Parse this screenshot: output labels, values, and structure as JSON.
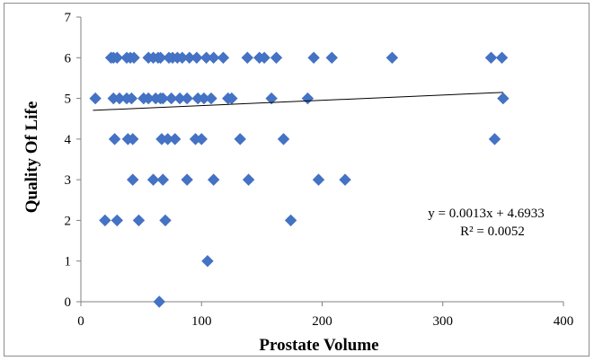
{
  "chart_data": {
    "type": "scatter",
    "title": "",
    "xlabel": "Prostate Volume",
    "ylabel": "Quality Of Life",
    "xlim": [
      0,
      400
    ],
    "ylim": [
      0,
      7
    ],
    "xticks": [
      "0",
      "100",
      "200",
      "300",
      "400"
    ],
    "yticks": [
      "0",
      "1",
      "2",
      "3",
      "4",
      "5",
      "6",
      "7"
    ],
    "grid": false,
    "legend": "none",
    "marker_color": "#4472C4",
    "trendline_color": "#000000",
    "annotation": {
      "equation": "y = 0.0013x + 4.6933",
      "r_squared": "R² = 0.0052"
    },
    "trendline": {
      "slope": 0.0013,
      "intercept": 4.6933,
      "x_range": [
        10,
        350
      ]
    },
    "points": [
      {
        "x": 25,
        "y": 6
      },
      {
        "x": 27,
        "y": 6
      },
      {
        "x": 30,
        "y": 6
      },
      {
        "x": 38,
        "y": 6
      },
      {
        "x": 41,
        "y": 6
      },
      {
        "x": 44,
        "y": 6
      },
      {
        "x": 56,
        "y": 6
      },
      {
        "x": 60,
        "y": 6
      },
      {
        "x": 64,
        "y": 6
      },
      {
        "x": 66,
        "y": 6
      },
      {
        "x": 73,
        "y": 6
      },
      {
        "x": 76,
        "y": 6
      },
      {
        "x": 80,
        "y": 6
      },
      {
        "x": 84,
        "y": 6
      },
      {
        "x": 90,
        "y": 6
      },
      {
        "x": 96,
        "y": 6
      },
      {
        "x": 104,
        "y": 6
      },
      {
        "x": 110,
        "y": 6
      },
      {
        "x": 118,
        "y": 6
      },
      {
        "x": 138,
        "y": 6
      },
      {
        "x": 148,
        "y": 6
      },
      {
        "x": 152,
        "y": 6
      },
      {
        "x": 162,
        "y": 6
      },
      {
        "x": 193,
        "y": 6
      },
      {
        "x": 208,
        "y": 6
      },
      {
        "x": 258,
        "y": 6
      },
      {
        "x": 340,
        "y": 6
      },
      {
        "x": 349,
        "y": 6
      },
      {
        "x": 12,
        "y": 5
      },
      {
        "x": 27,
        "y": 5
      },
      {
        "x": 32,
        "y": 5
      },
      {
        "x": 38,
        "y": 5
      },
      {
        "x": 42,
        "y": 5
      },
      {
        "x": 52,
        "y": 5
      },
      {
        "x": 56,
        "y": 5
      },
      {
        "x": 62,
        "y": 5
      },
      {
        "x": 66,
        "y": 5
      },
      {
        "x": 68,
        "y": 5
      },
      {
        "x": 75,
        "y": 5
      },
      {
        "x": 82,
        "y": 5
      },
      {
        "x": 88,
        "y": 5
      },
      {
        "x": 97,
        "y": 5
      },
      {
        "x": 102,
        "y": 5
      },
      {
        "x": 108,
        "y": 5
      },
      {
        "x": 122,
        "y": 5
      },
      {
        "x": 125,
        "y": 5
      },
      {
        "x": 158,
        "y": 5
      },
      {
        "x": 188,
        "y": 5
      },
      {
        "x": 350,
        "y": 5
      },
      {
        "x": 28,
        "y": 4
      },
      {
        "x": 39,
        "y": 4
      },
      {
        "x": 43,
        "y": 4
      },
      {
        "x": 67,
        "y": 4
      },
      {
        "x": 72,
        "y": 4
      },
      {
        "x": 78,
        "y": 4
      },
      {
        "x": 95,
        "y": 4
      },
      {
        "x": 100,
        "y": 4
      },
      {
        "x": 132,
        "y": 4
      },
      {
        "x": 168,
        "y": 4
      },
      {
        "x": 343,
        "y": 4
      },
      {
        "x": 43,
        "y": 3
      },
      {
        "x": 60,
        "y": 3
      },
      {
        "x": 68,
        "y": 3
      },
      {
        "x": 88,
        "y": 3
      },
      {
        "x": 110,
        "y": 3
      },
      {
        "x": 139,
        "y": 3
      },
      {
        "x": 197,
        "y": 3
      },
      {
        "x": 219,
        "y": 3
      },
      {
        "x": 20,
        "y": 2
      },
      {
        "x": 30,
        "y": 2
      },
      {
        "x": 48,
        "y": 2
      },
      {
        "x": 70,
        "y": 2
      },
      {
        "x": 174,
        "y": 2
      },
      {
        "x": 105,
        "y": 1
      },
      {
        "x": 65,
        "y": 0
      }
    ]
  }
}
